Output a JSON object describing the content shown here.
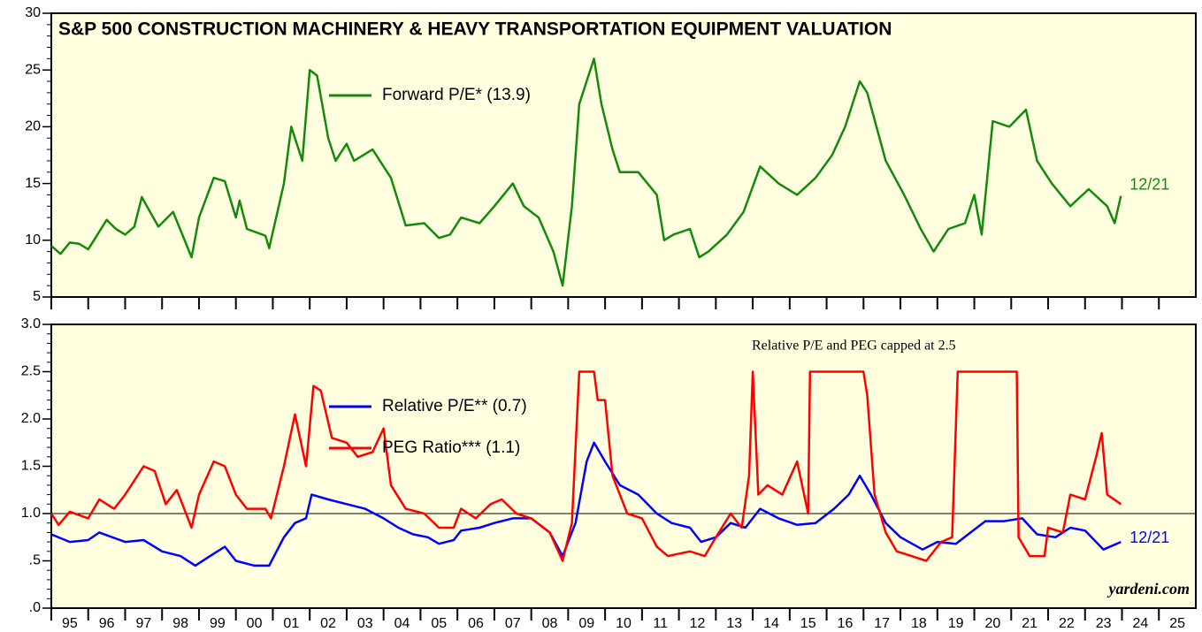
{
  "chart_data": [
    {
      "type": "line",
      "title": "S&P 500 CONSTRUCTION MACHINERY & HEAVY TRANSPORTATION EQUIPMENT VALUATION",
      "xlim": [
        1995,
        2026
      ],
      "ylim": [
        5,
        30
      ],
      "yticks": [
        5,
        10,
        15,
        20,
        25,
        30
      ],
      "background": "#ffffe0",
      "end_label": "12/21",
      "series": [
        {
          "name": "Forward P/E* (13.9)",
          "color": "#138a0a",
          "x": [
            1995.0,
            1995.25,
            1995.5,
            1995.75,
            1996.0,
            1996.25,
            1996.5,
            1996.75,
            1997.0,
            1997.25,
            1997.45,
            1997.9,
            1998.3,
            1998.8,
            1999.0,
            1999.4,
            1999.7,
            2000.0,
            2000.1,
            2000.3,
            2000.8,
            2000.9,
            2001.3,
            2001.5,
            2001.8,
            2002.0,
            2002.2,
            2002.5,
            2002.7,
            2003.0,
            2003.2,
            2003.7,
            2004.2,
            2004.6,
            2005.1,
            2005.5,
            2005.8,
            2006.1,
            2006.6,
            2007.0,
            2007.5,
            2007.8,
            2008.2,
            2008.6,
            2008.85,
            2009.1,
            2009.3,
            2009.7,
            2009.9,
            2010.2,
            2010.4,
            2010.9,
            2011.4,
            2011.6,
            2011.85,
            2012.3,
            2012.55,
            2012.8,
            2013.3,
            2013.75,
            2014.2,
            2014.7,
            2015.2,
            2015.7,
            2016.15,
            2016.5,
            2016.9,
            2017.1,
            2017.6,
            2018.1,
            2018.55,
            2018.9,
            2019.3,
            2019.75,
            2020.0,
            2020.2,
            2020.5,
            2020.95,
            2021.4,
            2021.7,
            2022.1,
            2022.6,
            2023.1,
            2023.6,
            2023.8,
            2023.97
          ],
          "values": [
            9.5,
            8.8,
            9.8,
            9.7,
            9.2,
            10.5,
            11.8,
            11.0,
            10.5,
            11.2,
            13.8,
            11.2,
            12.5,
            8.5,
            12.0,
            15.5,
            15.2,
            12.0,
            13.5,
            11.0,
            10.4,
            9.3,
            15.0,
            20.0,
            17.0,
            25.0,
            24.5,
            19.0,
            17.0,
            18.5,
            17.0,
            18.0,
            15.5,
            11.3,
            11.5,
            10.2,
            10.5,
            12.0,
            11.5,
            13.0,
            15.0,
            13.0,
            12.0,
            9.0,
            6.0,
            13.0,
            22.0,
            26.0,
            22.0,
            18.0,
            16.0,
            16.0,
            14.0,
            10.0,
            10.5,
            11.0,
            8.5,
            9.0,
            10.5,
            12.5,
            16.5,
            15.0,
            14.0,
            15.5,
            17.5,
            20.0,
            24.0,
            23.0,
            17.0,
            14.0,
            11.0,
            9.0,
            11.0,
            11.5,
            14.0,
            10.5,
            20.5,
            20.0,
            21.5,
            17.0,
            15.0,
            13.0,
            14.5,
            13.0,
            11.5,
            13.9
          ]
        }
      ]
    },
    {
      "type": "line",
      "xlim": [
        1995,
        2026
      ],
      "ylim": [
        0,
        3
      ],
      "yticks": [
        {
          "value": 0,
          "label": ".0"
        },
        {
          "value": 0.5,
          "label": ".5"
        },
        {
          "value": 1,
          "label": "1.0"
        },
        {
          "value": 1.5,
          "label": "1.5"
        },
        {
          "value": 2,
          "label": "2.0"
        },
        {
          "value": 2.5,
          "label": "2.5"
        },
        {
          "value": 3,
          "label": "3.0"
        }
      ],
      "xticks": [
        {
          "value": 1995,
          "label": "95"
        },
        {
          "value": 1996,
          "label": "96"
        },
        {
          "value": 1997,
          "label": "97"
        },
        {
          "value": 1998,
          "label": "98"
        },
        {
          "value": 1999,
          "label": "99"
        },
        {
          "value": 2000,
          "label": "00"
        },
        {
          "value": 2001,
          "label": "01"
        },
        {
          "value": 2002,
          "label": "02"
        },
        {
          "value": 2003,
          "label": "03"
        },
        {
          "value": 2004,
          "label": "04"
        },
        {
          "value": 2005,
          "label": "05"
        },
        {
          "value": 2006,
          "label": "06"
        },
        {
          "value": 2007,
          "label": "07"
        },
        {
          "value": 2008,
          "label": "08"
        },
        {
          "value": 2009,
          "label": "09"
        },
        {
          "value": 2010,
          "label": "10"
        },
        {
          "value": 2011,
          "label": "11"
        },
        {
          "value": 2012,
          "label": "12"
        },
        {
          "value": 2013,
          "label": "13"
        },
        {
          "value": 2014,
          "label": "14"
        },
        {
          "value": 2015,
          "label": "15"
        },
        {
          "value": 2016,
          "label": "16"
        },
        {
          "value": 2017,
          "label": "17"
        },
        {
          "value": 2018,
          "label": "18"
        },
        {
          "value": 2019,
          "label": "19"
        },
        {
          "value": 2020,
          "label": "20"
        },
        {
          "value": 2021,
          "label": "21"
        },
        {
          "value": 2022,
          "label": "22"
        },
        {
          "value": 2023,
          "label": "23"
        },
        {
          "value": 2024,
          "label": "24"
        },
        {
          "value": 2025,
          "label": "25"
        }
      ],
      "background": "#ffffe0",
      "reference_line": 1,
      "annotation": "Relative P/E and PEG capped at 2.5",
      "source": "yardeni.com",
      "end_label": "12/21",
      "series": [
        {
          "name": "Relative P/E** (0.7)",
          "color": "#0000ff",
          "x": [
            1995.0,
            1995.5,
            1996.0,
            1996.3,
            1997.0,
            1997.5,
            1998.0,
            1998.5,
            1998.9,
            1999.3,
            1999.7,
            2000.0,
            2000.5,
            2000.9,
            2001.3,
            2001.6,
            2001.9,
            2002.05,
            2002.5,
            2003.0,
            2003.5,
            2004.0,
            2004.4,
            2004.8,
            2005.2,
            2005.5,
            2005.9,
            2006.1,
            2006.6,
            2007.0,
            2007.5,
            2008.0,
            2008.5,
            2008.85,
            2009.2,
            2009.5,
            2009.7,
            2010.0,
            2010.4,
            2010.9,
            2011.4,
            2011.8,
            2012.3,
            2012.6,
            2013.0,
            2013.4,
            2013.8,
            2014.2,
            2014.7,
            2015.2,
            2015.7,
            2016.2,
            2016.6,
            2016.9,
            2017.2,
            2017.6,
            2018.0,
            2018.6,
            2019.0,
            2019.5,
            2019.9,
            2020.3,
            2020.8,
            2021.3,
            2021.7,
            2022.2,
            2022.6,
            2023.0,
            2023.5,
            2023.97
          ],
          "values": [
            0.78,
            0.7,
            0.72,
            0.8,
            0.7,
            0.72,
            0.6,
            0.55,
            0.45,
            0.55,
            0.65,
            0.5,
            0.45,
            0.45,
            0.75,
            0.9,
            0.95,
            1.2,
            1.15,
            1.1,
            1.05,
            0.95,
            0.85,
            0.78,
            0.75,
            0.68,
            0.72,
            0.82,
            0.85,
            0.9,
            0.95,
            0.95,
            0.8,
            0.55,
            0.9,
            1.55,
            1.75,
            1.55,
            1.3,
            1.2,
            1.0,
            0.9,
            0.85,
            0.7,
            0.75,
            0.9,
            0.85,
            1.05,
            0.95,
            0.88,
            0.9,
            1.05,
            1.2,
            1.4,
            1.2,
            0.9,
            0.75,
            0.62,
            0.7,
            0.68,
            0.8,
            0.92,
            0.92,
            0.95,
            0.78,
            0.75,
            0.85,
            0.82,
            0.62,
            0.7
          ]
        },
        {
          "name": "PEG Ratio*** (1.1)",
          "color": "#ff0000",
          "x": [
            1995.0,
            1995.2,
            1995.5,
            1996.0,
            1996.3,
            1996.7,
            1997.0,
            1997.5,
            1997.8,
            1998.1,
            1998.4,
            1998.8,
            1999.0,
            1999.4,
            1999.7,
            2000.0,
            2000.3,
            2000.8,
            2000.95,
            2001.3,
            2001.6,
            2001.9,
            2002.1,
            2002.3,
            2002.6,
            2003.0,
            2003.3,
            2003.7,
            2004.0,
            2004.2,
            2004.6,
            2005.1,
            2005.5,
            2005.9,
            2006.1,
            2006.5,
            2006.9,
            2007.2,
            2007.6,
            2008.0,
            2008.5,
            2008.85,
            2009.1,
            2009.3,
            2009.7,
            2009.8,
            2010.0,
            2010.2,
            2010.6,
            2011.0,
            2011.4,
            2011.7,
            2012.3,
            2012.7,
            2013.0,
            2013.4,
            2013.7,
            2013.9,
            2014.0,
            2014.15,
            2014.4,
            2014.8,
            2015.2,
            2015.5,
            2015.55,
            2016.0,
            2017.0,
            2017.1,
            2017.3,
            2017.6,
            2017.9,
            2018.3,
            2018.7,
            2019.1,
            2019.4,
            2019.55,
            2020.0,
            2021.0,
            2021.15,
            2021.2,
            2021.5,
            2021.9,
            2022.0,
            2022.4,
            2022.6,
            2023.0,
            2023.3,
            2023.45,
            2023.6,
            2023.97
          ],
          "values": [
            1.0,
            0.88,
            1.02,
            0.95,
            1.15,
            1.05,
            1.2,
            1.5,
            1.45,
            1.1,
            1.25,
            0.85,
            1.2,
            1.55,
            1.5,
            1.2,
            1.05,
            1.05,
            0.95,
            1.5,
            2.05,
            1.5,
            2.35,
            2.3,
            1.8,
            1.75,
            1.6,
            1.65,
            1.9,
            1.3,
            1.05,
            1.0,
            0.85,
            0.85,
            1.05,
            0.95,
            1.1,
            1.15,
            1.0,
            0.95,
            0.8,
            0.5,
            0.9,
            2.5,
            2.5,
            2.2,
            2.2,
            1.4,
            1.0,
            0.95,
            0.65,
            0.55,
            0.6,
            0.55,
            0.75,
            1.0,
            0.85,
            1.4,
            2.5,
            1.2,
            1.3,
            1.2,
            1.55,
            1.0,
            2.5,
            2.5,
            2.5,
            2.25,
            1.2,
            0.8,
            0.6,
            0.55,
            0.5,
            0.7,
            0.75,
            2.5,
            2.5,
            2.5,
            2.5,
            0.75,
            0.55,
            0.55,
            0.85,
            0.8,
            1.2,
            1.15,
            1.6,
            1.85,
            1.2,
            1.1
          ]
        }
      ]
    }
  ]
}
